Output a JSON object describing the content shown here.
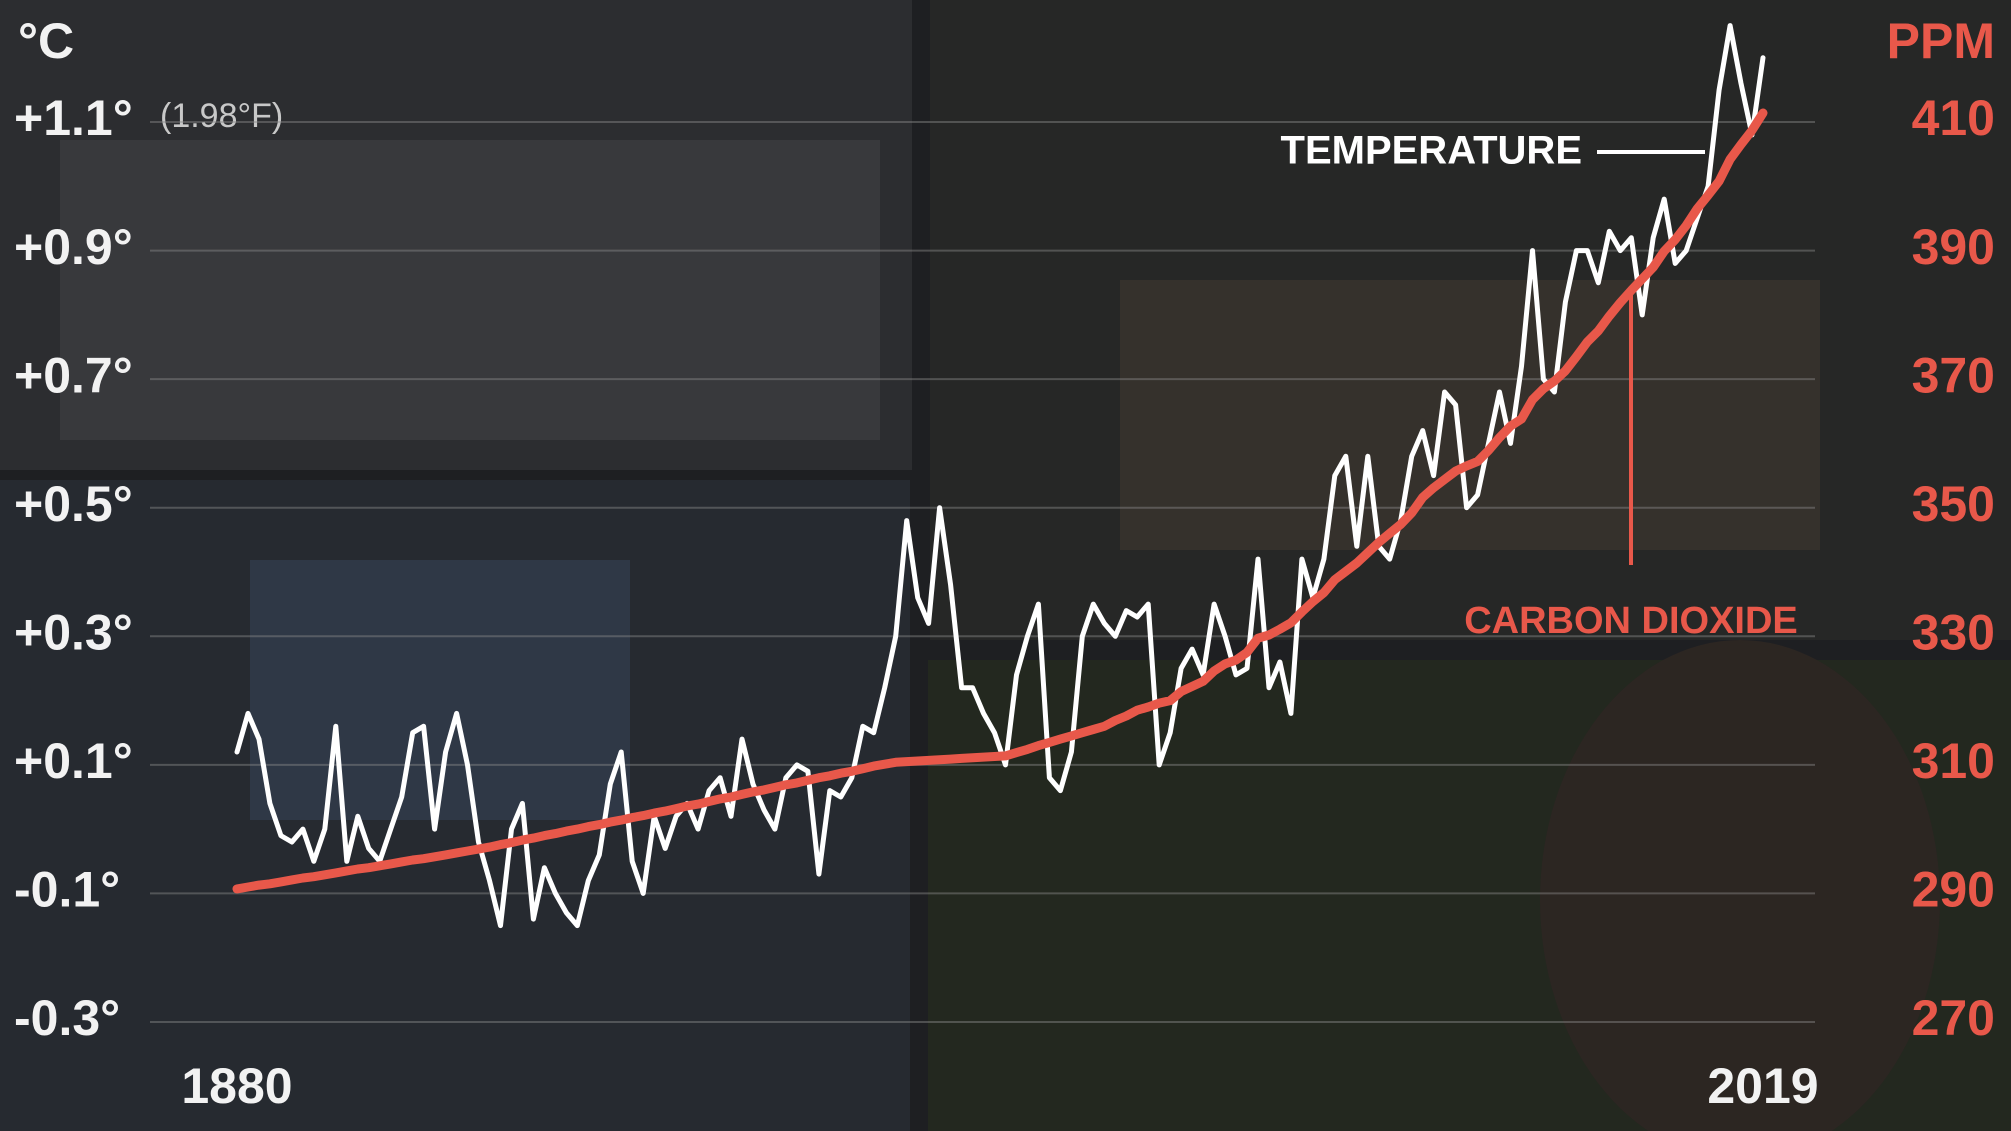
{
  "chart_data": {
    "type": "line",
    "x": [
      1880,
      1881,
      1882,
      1883,
      1884,
      1885,
      1886,
      1887,
      1888,
      1889,
      1890,
      1891,
      1892,
      1893,
      1894,
      1895,
      1896,
      1897,
      1898,
      1899,
      1900,
      1901,
      1902,
      1903,
      1904,
      1905,
      1906,
      1907,
      1908,
      1909,
      1910,
      1911,
      1912,
      1913,
      1914,
      1915,
      1916,
      1917,
      1918,
      1919,
      1920,
      1921,
      1922,
      1923,
      1924,
      1925,
      1926,
      1927,
      1928,
      1929,
      1930,
      1931,
      1932,
      1933,
      1934,
      1935,
      1936,
      1937,
      1938,
      1939,
      1940,
      1941,
      1942,
      1943,
      1944,
      1945,
      1946,
      1947,
      1948,
      1949,
      1950,
      1951,
      1952,
      1953,
      1954,
      1955,
      1956,
      1957,
      1958,
      1959,
      1960,
      1961,
      1962,
      1963,
      1964,
      1965,
      1966,
      1967,
      1968,
      1969,
      1970,
      1971,
      1972,
      1973,
      1974,
      1975,
      1976,
      1977,
      1978,
      1979,
      1980,
      1981,
      1982,
      1983,
      1984,
      1985,
      1986,
      1987,
      1988,
      1989,
      1990,
      1991,
      1992,
      1993,
      1994,
      1995,
      1996,
      1997,
      1998,
      1999,
      2000,
      2001,
      2002,
      2003,
      2004,
      2005,
      2006,
      2007,
      2008,
      2009,
      2010,
      2011,
      2012,
      2013,
      2014,
      2015,
      2016,
      2017,
      2018,
      2019
    ],
    "series": [
      {
        "name": "TEMPERATURE",
        "color": "#ffffff",
        "values": [
          0.12,
          0.18,
          0.14,
          0.04,
          -0.01,
          -0.02,
          0.0,
          -0.05,
          0.0,
          0.16,
          -0.05,
          0.02,
          -0.03,
          -0.05,
          0.0,
          0.05,
          0.15,
          0.16,
          0.0,
          0.12,
          0.18,
          0.1,
          -0.02,
          -0.08,
          -0.15,
          0.0,
          0.04,
          -0.14,
          -0.06,
          -0.1,
          -0.13,
          -0.15,
          -0.08,
          -0.04,
          0.07,
          0.12,
          -0.05,
          -0.1,
          0.02,
          -0.03,
          0.02,
          0.04,
          0.0,
          0.06,
          0.08,
          0.02,
          0.14,
          0.07,
          0.03,
          0.0,
          0.08,
          0.1,
          0.09,
          -0.07,
          0.06,
          0.05,
          0.08,
          0.16,
          0.15,
          0.22,
          0.3,
          0.48,
          0.36,
          0.32,
          0.5,
          0.38,
          0.22,
          0.22,
          0.18,
          0.15,
          0.1,
          0.24,
          0.3,
          0.35,
          0.08,
          0.06,
          0.12,
          0.3,
          0.35,
          0.32,
          0.3,
          0.34,
          0.33,
          0.35,
          0.1,
          0.15,
          0.25,
          0.28,
          0.24,
          0.35,
          0.3,
          0.24,
          0.25,
          0.42,
          0.22,
          0.26,
          0.18,
          0.42,
          0.36,
          0.42,
          0.55,
          0.58,
          0.44,
          0.58,
          0.44,
          0.42,
          0.48,
          0.58,
          0.62,
          0.55,
          0.68,
          0.66,
          0.5,
          0.52,
          0.6,
          0.68,
          0.6,
          0.72,
          0.9,
          0.7,
          0.68,
          0.82,
          0.9,
          0.9,
          0.85,
          0.93,
          0.9,
          0.92,
          0.8,
          0.92,
          0.98,
          0.88,
          0.9,
          0.95,
          1.0,
          1.15,
          1.25,
          1.16,
          1.08,
          1.2
        ]
      },
      {
        "name": "CARBON DIOXIDE",
        "color": "#e8584a",
        "axis": "y2",
        "values": [
          290.7,
          291.0,
          291.3,
          291.5,
          291.8,
          292.1,
          292.4,
          292.6,
          292.9,
          293.2,
          293.5,
          293.8,
          294.0,
          294.3,
          294.6,
          294.9,
          295.2,
          295.4,
          295.7,
          296.0,
          296.3,
          296.6,
          296.9,
          297.2,
          297.6,
          297.9,
          298.3,
          298.6,
          299.0,
          299.3,
          299.7,
          300.0,
          300.4,
          300.7,
          301.1,
          301.4,
          301.8,
          302.1,
          302.5,
          302.8,
          303.2,
          303.6,
          303.9,
          304.3,
          304.7,
          305.0,
          305.4,
          305.8,
          306.1,
          306.5,
          306.9,
          307.2,
          307.6,
          308.0,
          308.3,
          308.7,
          309.0,
          309.4,
          309.8,
          310.1,
          310.4,
          310.5,
          310.6,
          310.7,
          310.8,
          310.9,
          311.0,
          311.1,
          311.2,
          311.3,
          311.4,
          311.9,
          312.4,
          313.0,
          313.5,
          314.0,
          314.5,
          315.0,
          315.5,
          316.0,
          316.9,
          317.6,
          318.5,
          319.0,
          319.6,
          320.0,
          321.4,
          322.2,
          323.0,
          324.6,
          325.7,
          326.3,
          327.5,
          329.7,
          330.2,
          331.1,
          332.1,
          333.8,
          335.4,
          336.8,
          338.8,
          340.1,
          341.4,
          343.0,
          344.6,
          346.0,
          347.4,
          349.2,
          351.6,
          353.1,
          354.4,
          355.7,
          356.5,
          357.2,
          358.9,
          360.9,
          362.7,
          363.8,
          366.8,
          368.5,
          369.7,
          371.3,
          373.5,
          375.8,
          377.5,
          379.8,
          381.9,
          383.8,
          385.6,
          387.4,
          389.9,
          391.7,
          393.9,
          396.5,
          398.6,
          400.8,
          404.2,
          406.5,
          408.7,
          411.4
        ]
      }
    ],
    "xlim": [
      1880,
      2019
    ],
    "xticks": [
      1880,
      2019
    ],
    "ylabel": "°C",
    "ylim": [
      -0.3,
      1.1
    ],
    "yticks": [
      {
        "value": -0.3,
        "label": "-0.3°"
      },
      {
        "value": -0.1,
        "label": "-0.1°"
      },
      {
        "value": 0.1,
        "label": "+0.1°"
      },
      {
        "value": 0.3,
        "label": "+0.3°"
      },
      {
        "value": 0.5,
        "label": "+0.5°"
      },
      {
        "value": 0.7,
        "label": "+0.7°"
      },
      {
        "value": 0.9,
        "label": "+0.9°"
      },
      {
        "value": 1.1,
        "label": "+1.1°"
      }
    ],
    "y2label": "PPM",
    "y2lim": [
      270,
      410
    ],
    "y2ticks": [
      270,
      290,
      310,
      330,
      350,
      370,
      390,
      410
    ],
    "annotations": [
      "(1.98°F)"
    ],
    "grid": true
  }
}
